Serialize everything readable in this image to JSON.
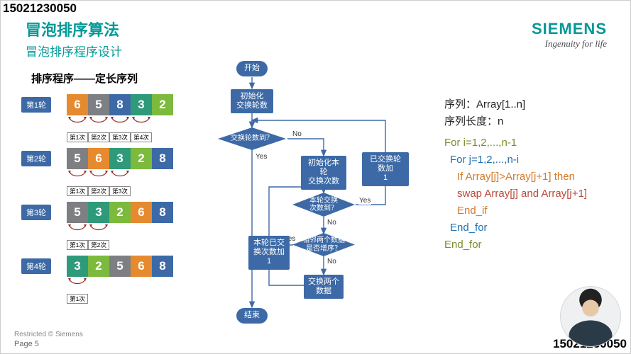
{
  "watermark": "15021230050",
  "title1": "冒泡排序算法",
  "title2": "冒泡排序程序设计",
  "brand": {
    "name": "SIEMENS",
    "tagline": "Ingenuity for life"
  },
  "subtitle": "排序程序——定长序列",
  "footer": {
    "restricted": "Restricted © Siemens",
    "page": "Page 5"
  },
  "cell_colors": {
    "orange": "#e58a2e",
    "gray": "#7d7f82",
    "blue": "#3d6aa6",
    "teal": "#2f9a7a",
    "green": "#7cba3d"
  },
  "rounds": [
    {
      "label": "第1轮",
      "cells": [
        "6",
        "5",
        "8",
        "3",
        "2"
      ],
      "colors": [
        "orange",
        "gray",
        "blue",
        "teal",
        "green"
      ],
      "swaps": [
        true,
        true,
        true,
        true
      ],
      "swap_labels": [
        "第1次",
        "第2次",
        "第3次",
        "第4次"
      ]
    },
    {
      "label": "第2轮",
      "cells": [
        "5",
        "6",
        "3",
        "2",
        "8"
      ],
      "colors": [
        "gray",
        "orange",
        "teal",
        "green",
        "blue"
      ],
      "swaps": [
        true,
        true,
        true,
        false
      ],
      "swap_labels": [
        "第1次",
        "第2次",
        "第3次",
        ""
      ]
    },
    {
      "label": "第3轮",
      "cells": [
        "5",
        "3",
        "2",
        "6",
        "8"
      ],
      "colors": [
        "gray",
        "teal",
        "green",
        "orange",
        "blue"
      ],
      "swaps": [
        true,
        true,
        false,
        false
      ],
      "swap_labels": [
        "第1次",
        "第2次",
        "",
        ""
      ]
    },
    {
      "label": "第4轮",
      "cells": [
        "3",
        "2",
        "5",
        "6",
        "8"
      ],
      "colors": [
        "teal",
        "green",
        "gray",
        "orange",
        "blue"
      ],
      "swaps": [
        true,
        false,
        false,
        false
      ],
      "swap_labels": [
        "第1次",
        "",
        "",
        ""
      ]
    }
  ],
  "flow": {
    "start": "开始",
    "init_rounds": "初始化\n交换轮数",
    "rounds_done": "交换轮数到？",
    "init_pass_count": "初始化本轮\n交换次数",
    "inc_round": "已交换轮数加\n1",
    "pass_done": "本轮交换\n次数到？",
    "inc_pass": "本轮已交\n换次数加1",
    "need_swap": "相邻两个数据\n是否增序？",
    "do_swap": "交换两个\n数据",
    "end": "结束",
    "yes": "Yes",
    "no": "No"
  },
  "code_top": {
    "l1": "序列：Array[1..n]",
    "l2": "序列长度：n"
  },
  "code": [
    {
      "txt": "For i=1,2,...,n-1",
      "cls": "c-outer",
      "ind": ""
    },
    {
      "txt": "For j=1,2,...,n-i",
      "cls": "c-mid",
      "ind": "i1"
    },
    {
      "txt": "If Array[j]>Array[j+1] then",
      "cls": "c-inner",
      "ind": "i2"
    },
    {
      "txt": "swap Array[j] and Array[j+1]",
      "cls": "c-red",
      "ind": "i2"
    },
    {
      "txt": "End_if",
      "cls": "c-inner",
      "ind": "i3"
    },
    {
      "txt": "End_for",
      "cls": "c-mid",
      "ind": "i1"
    },
    {
      "txt": "End_for",
      "cls": "c-outer",
      "ind": ""
    }
  ]
}
